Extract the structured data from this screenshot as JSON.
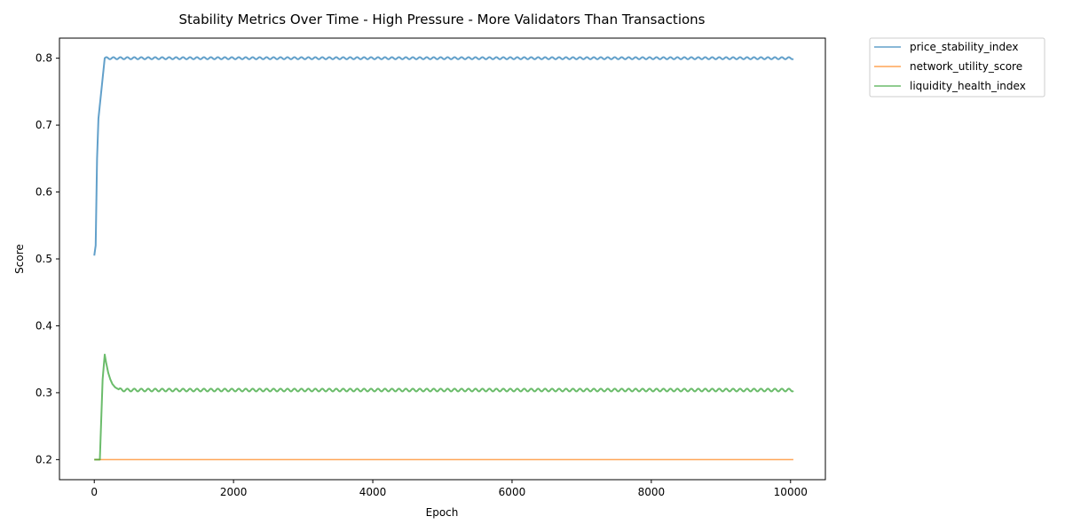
{
  "chart_data": {
    "type": "line",
    "title": "Stability Metrics Over Time - High Pressure - More Validators Than Transactions",
    "xlabel": "Epoch",
    "ylabel": "Score",
    "xlim": [
      -500,
      10500
    ],
    "ylim": [
      0.17,
      0.83
    ],
    "xticks": [
      0,
      2000,
      4000,
      6000,
      8000,
      10000
    ],
    "yticks": [
      0.2,
      0.3,
      0.4,
      0.5,
      0.6,
      0.7,
      0.8
    ],
    "xtick_labels": [
      "0",
      "2000",
      "4000",
      "6000",
      "8000",
      "10000"
    ],
    "ytick_labels": [
      "0.2",
      "0.3",
      "0.4",
      "0.5",
      "0.6",
      "0.7",
      "0.8"
    ],
    "grid": false,
    "legend_position": "outside-top-right",
    "series": [
      {
        "name": "price_stability_index",
        "color": "#1f77b4",
        "x": [
          0,
          20,
          40,
          60,
          80,
          100,
          120,
          140,
          150,
          160,
          200,
          300,
          500,
          1000,
          2000,
          3000,
          4000,
          5000,
          6000,
          7000,
          8000,
          9000,
          10000,
          10040
        ],
        "y": [
          0.505,
          0.52,
          0.65,
          0.71,
          0.73,
          0.75,
          0.77,
          0.79,
          0.8,
          0.8,
          0.8,
          0.8,
          0.8,
          0.8,
          0.8,
          0.8,
          0.8,
          0.8,
          0.8,
          0.8,
          0.8,
          0.8,
          0.8,
          0.8
        ],
        "oscillation": {
          "from_x": 150,
          "amplitude": 0.0015,
          "period": 100
        }
      },
      {
        "name": "network_utility_score",
        "color": "#ff7f0e",
        "x": [
          0,
          10040
        ],
        "y": [
          0.2,
          0.2
        ]
      },
      {
        "name": "liquidity_health_index",
        "color": "#2ca02c",
        "x": [
          0,
          40,
          80,
          100,
          120,
          150,
          170,
          200,
          230,
          260,
          300,
          350,
          400,
          500,
          1000,
          2000,
          3000,
          4000,
          5000,
          6000,
          7000,
          8000,
          9000,
          10000,
          10040
        ],
        "y": [
          0.2,
          0.2,
          0.2,
          0.26,
          0.32,
          0.357,
          0.345,
          0.33,
          0.32,
          0.313,
          0.308,
          0.305,
          0.304,
          0.304,
          0.304,
          0.304,
          0.304,
          0.304,
          0.304,
          0.304,
          0.304,
          0.304,
          0.304,
          0.304,
          0.304
        ],
        "oscillation": {
          "from_x": 350,
          "amplitude": 0.002,
          "period": 100
        }
      }
    ]
  }
}
